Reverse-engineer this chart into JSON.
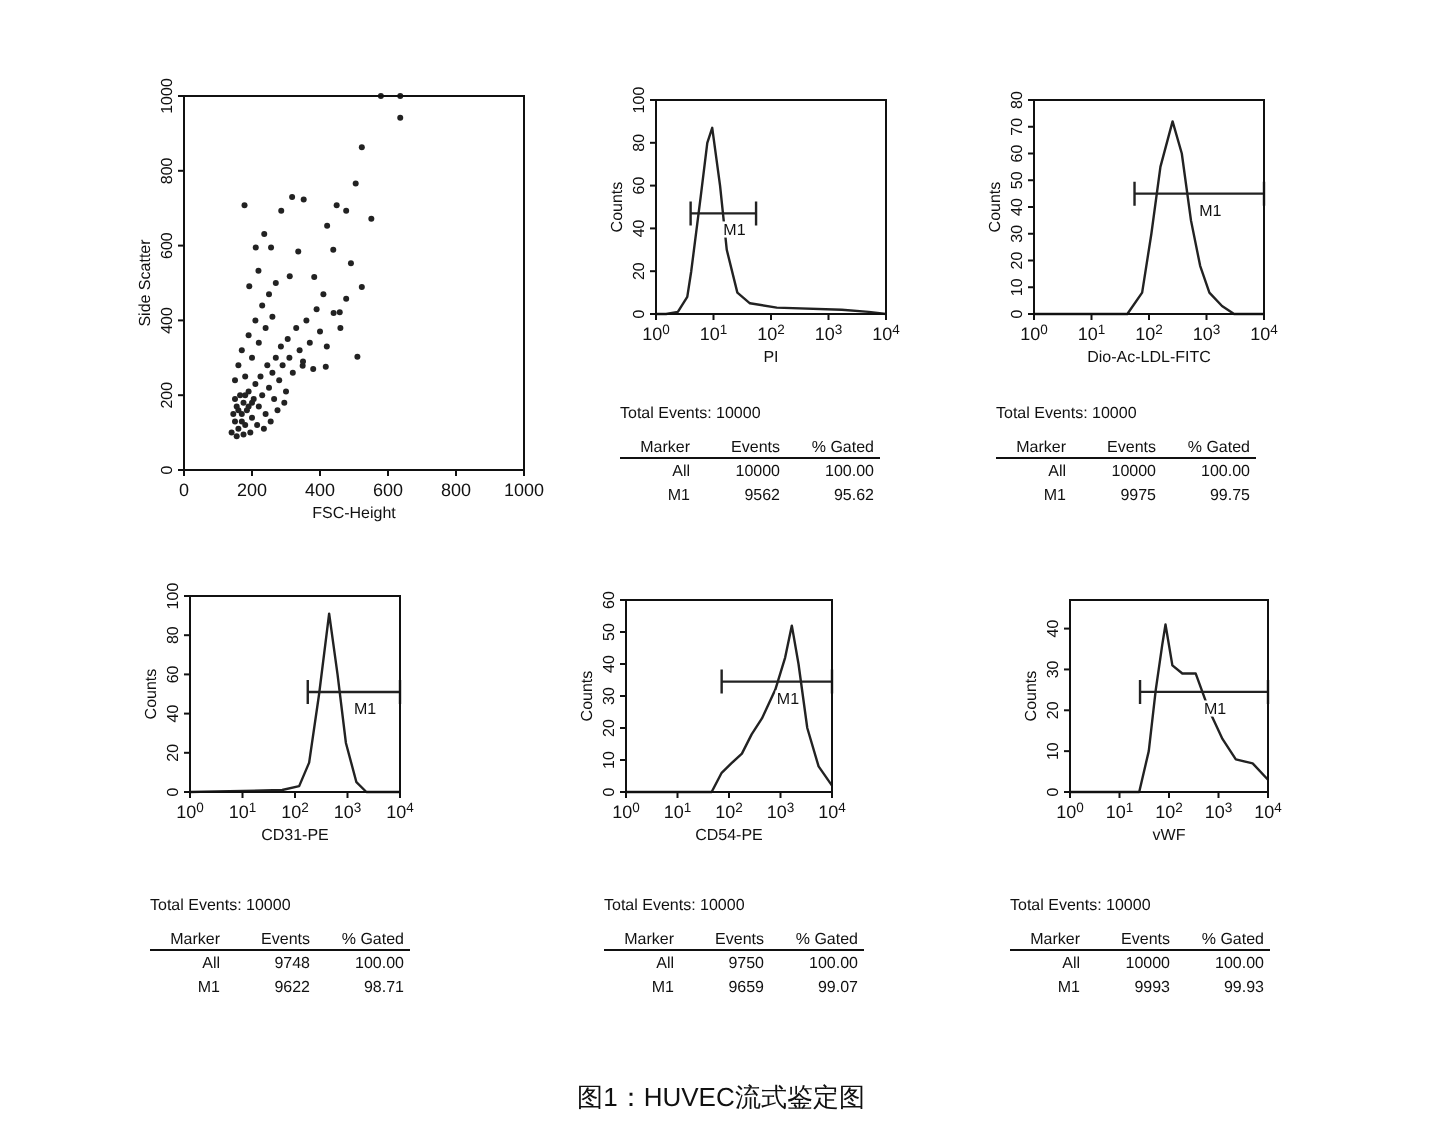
{
  "chart_data": [
    {
      "type": "scatter",
      "xlabel": "FSC-Height",
      "ylabel": "Side Scatter",
      "xlim": [
        0,
        1000
      ],
      "ylim": [
        0,
        1000
      ],
      "xticks": [
        0,
        200,
        400,
        600,
        800,
        1000
      ],
      "yticks": [
        0,
        200,
        400,
        600,
        800,
        1000
      ],
      "marker": "circle",
      "grid": false,
      "series": [
        {
          "color": "#222222",
          "x": [
            579,
            636,
            636,
            523,
            505,
            178,
            318,
            352,
            286,
            449,
            477,
            551,
            421,
            236,
            211,
            256,
            336,
            439,
            491,
            219,
            311,
            192,
            383,
            523,
            477,
            458,
            510,
            417,
            349,
            140,
            150,
            160,
            170,
            180,
            155,
            165,
            175,
            185,
            190,
            200,
            205,
            210,
            220,
            225,
            230,
            240,
            245,
            250,
            260,
            265,
            270,
            280,
            285,
            290,
            300,
            305,
            310,
            320,
            330,
            340,
            350,
            360,
            370,
            380,
            390,
            400,
            410,
            420,
            440,
            460,
            150,
            160,
            170,
            180,
            190,
            200,
            210,
            220,
            230,
            240,
            250,
            260,
            270,
            145,
            155,
            175,
            195,
            215,
            235,
            255,
            275,
            295,
            200,
            190,
            180,
            170,
            160,
            150
          ],
          "values": [
            1000,
            1000,
            942,
            863,
            766,
            708,
            730,
            723,
            693,
            708,
            693,
            672,
            653,
            631,
            595,
            595,
            584,
            589,
            553,
            533,
            518,
            491,
            516,
            489,
            458,
            422,
            303,
            276,
            279,
            100,
            130,
            110,
            150,
            120,
            170,
            200,
            180,
            160,
            210,
            140,
            190,
            230,
            170,
            250,
            200,
            150,
            280,
            220,
            260,
            190,
            300,
            240,
            330,
            280,
            210,
            350,
            300,
            260,
            380,
            320,
            290,
            400,
            340,
            270,
            430,
            370,
            470,
            330,
            420,
            380,
            240,
            280,
            320,
            250,
            360,
            300,
            400,
            340,
            440,
            380,
            470,
            410,
            500,
            150,
            90,
            95,
            100,
            120,
            110,
            130,
            160,
            180,
            180,
            170,
            200,
            130,
            160,
            190
          ]
        }
      ]
    },
    {
      "type": "line",
      "xlabel": "PI",
      "ylabel": "Counts",
      "log": "x",
      "xlim": [
        1,
        10000
      ],
      "ylim": [
        0,
        100
      ],
      "xticks": [
        {
          "value": 1,
          "label": "10$^{0}$"
        },
        {
          "value": 10,
          "label": "10$^{1}$"
        },
        {
          "value": 100,
          "label": "10$^{2}$"
        },
        {
          "value": 1000,
          "label": "10$^{3}$"
        },
        {
          "value": 10000,
          "label": "10$^{4}$"
        }
      ],
      "yticks": [
        0,
        20,
        40,
        60,
        80,
        100
      ],
      "series": [
        {
          "color": "#222222",
          "x": [
            1,
            1.5,
            2.4,
            3.5,
            4.1,
            6,
            7.8,
            9.5,
            13,
            17,
            26,
            43,
            126,
            1700,
            5000,
            10000
          ],
          "values": [
            0,
            0,
            1,
            8,
            20,
            55,
            80,
            87,
            60,
            30,
            10,
            5,
            3,
            2,
            1,
            0
          ]
        },
        {
          "type": "line",
          "name": "M1",
          "color": "#222222",
          "x": [
            4,
            55
          ],
          "values": [
            47,
            47
          ]
        }
      ],
      "annotations": [
        "Total Events: 10000",
        "Marker  Events  % Gated",
        "All  10000  100.00",
        "M1  9562  95.62"
      ]
    },
    {
      "type": "line",
      "xlabel": "Dio-Ac-LDL-FITC",
      "ylabel": "Counts",
      "log": "x",
      "xlim": [
        1,
        10000
      ],
      "ylim": [
        0,
        80
      ],
      "xticks": [
        {
          "value": 1,
          "label": "10$^{0}$"
        },
        {
          "value": 10,
          "label": "10$^{1}$"
        },
        {
          "value": 100,
          "label": "10$^{2}$"
        },
        {
          "value": 1000,
          "label": "10$^{3}$"
        },
        {
          "value": 10000,
          "label": "10$^{4}$"
        }
      ],
      "yticks": [
        0,
        10,
        20,
        30,
        40,
        50,
        60,
        70,
        80
      ],
      "series": [
        {
          "color": "#222222",
          "x": [
            1,
            42,
            76,
            110,
            158,
            257,
            372,
            537,
            776,
            1122,
            1862,
            3020,
            10000
          ],
          "values": [
            0,
            0,
            8,
            30,
            55,
            72,
            60,
            35,
            18,
            8,
            3,
            0,
            0
          ]
        },
        {
          "type": "line",
          "name": "M1",
          "color": "#222222",
          "x": [
            56,
            10000
          ],
          "values": [
            45,
            45
          ]
        }
      ],
      "annotations": [
        "Total Events: 10000",
        "Marker  Events  % Gated",
        "All  10000  100.00",
        "M1  9975  99.75"
      ]
    },
    {
      "type": "line",
      "xlabel": "CD31-PE",
      "ylabel": "Counts",
      "log": "x",
      "xlim": [
        1,
        10000
      ],
      "ylim": [
        0,
        100
      ],
      "xticks": [
        {
          "value": 1,
          "label": "10$^{0}$"
        },
        {
          "value": 10,
          "label": "10$^{1}$"
        },
        {
          "value": 100,
          "label": "10$^{2}$"
        },
        {
          "value": 1000,
          "label": "10$^{3}$"
        },
        {
          "value": 10000,
          "label": "10$^{4}$"
        }
      ],
      "yticks": [
        0,
        20,
        40,
        60,
        80,
        100
      ],
      "series": [
        {
          "color": "#222222",
          "x": [
            1,
            57,
            120,
            186,
            288,
            447,
            646,
            933,
            1479,
            2291,
            10000
          ],
          "values": [
            0,
            1,
            3,
            15,
            50,
            91,
            60,
            25,
            5,
            0,
            0
          ]
        },
        {
          "type": "line",
          "name": "M1",
          "color": "#222222",
          "x": [
            175,
            10000
          ],
          "values": [
            51,
            51
          ]
        }
      ],
      "annotations": [
        "Total Events: 10000",
        "Marker  Events  % Gated",
        "All  9748  100.00",
        "M1  9622  98.71"
      ]
    },
    {
      "type": "line",
      "xlabel": "CD54-PE",
      "ylabel": "Counts",
      "log": "x",
      "xlim": [
        1,
        10000
      ],
      "ylim": [
        0,
        60
      ],
      "xticks": [
        {
          "value": 1,
          "label": "10$^{0}$"
        },
        {
          "value": 10,
          "label": "10$^{1}$"
        },
        {
          "value": 100,
          "label": "10$^{2}$"
        },
        {
          "value": 1000,
          "label": "10$^{3}$"
        },
        {
          "value": 10000,
          "label": "10$^{4}$"
        }
      ],
      "yticks": [
        0,
        10,
        20,
        30,
        40,
        50,
        60
      ],
      "series": [
        {
          "color": "#222222",
          "x": [
            1,
            46,
            72,
            112,
            178,
            275,
            436,
            794,
            1230,
            1660,
            2239,
            3311,
            5495,
            10000
          ],
          "values": [
            0,
            0,
            6,
            9,
            12,
            18,
            23,
            32,
            42,
            52,
            40,
            20,
            8,
            2
          ]
        },
        {
          "type": "line",
          "name": "M1",
          "color": "#222222",
          "x": [
            72,
            10000
          ],
          "values": [
            34.5,
            34.5
          ]
        }
      ],
      "annotations": [
        "Total Events: 10000",
        "Marker  Events  % Gated",
        "All  9750  100.00",
        "M1  9659  99.07"
      ]
    },
    {
      "type": "line",
      "xlabel": "vWF",
      "ylabel": "Counts",
      "log": "x",
      "xlim": [
        1,
        10000
      ],
      "ylim": [
        0,
        47
      ],
      "xticks": [
        {
          "value": 1,
          "label": "10$^{0}$"
        },
        {
          "value": 10,
          "label": "10$^{1}$"
        },
        {
          "value": 100,
          "label": "10$^{2}$"
        },
        {
          "value": 1000,
          "label": "10$^{3}$"
        },
        {
          "value": 10000,
          "label": "10$^{4}$"
        }
      ],
      "yticks": [
        0,
        10,
        20,
        30,
        40
      ],
      "series": [
        {
          "color": "#222222",
          "x": [
            1,
            25,
            39,
            54,
            73,
            85,
            117,
            186,
            347,
            646,
            1202,
            2239,
            4898,
            10000
          ],
          "values": [
            0,
            0,
            10,
            25,
            36,
            41,
            31,
            29,
            29,
            20,
            13,
            8,
            7,
            3
          ]
        },
        {
          "type": "line",
          "name": "M1",
          "color": "#222222",
          "x": [
            26,
            10000
          ],
          "values": [
            24.5,
            24.5
          ]
        }
      ],
      "annotations": [
        "Total Events: 10000",
        "Marker  Events  % Gated",
        "All  10000  100.00",
        "M1  9993  99.93",
        "图1：HUVEC流式鉴定图"
      ]
    }
  ]
}
